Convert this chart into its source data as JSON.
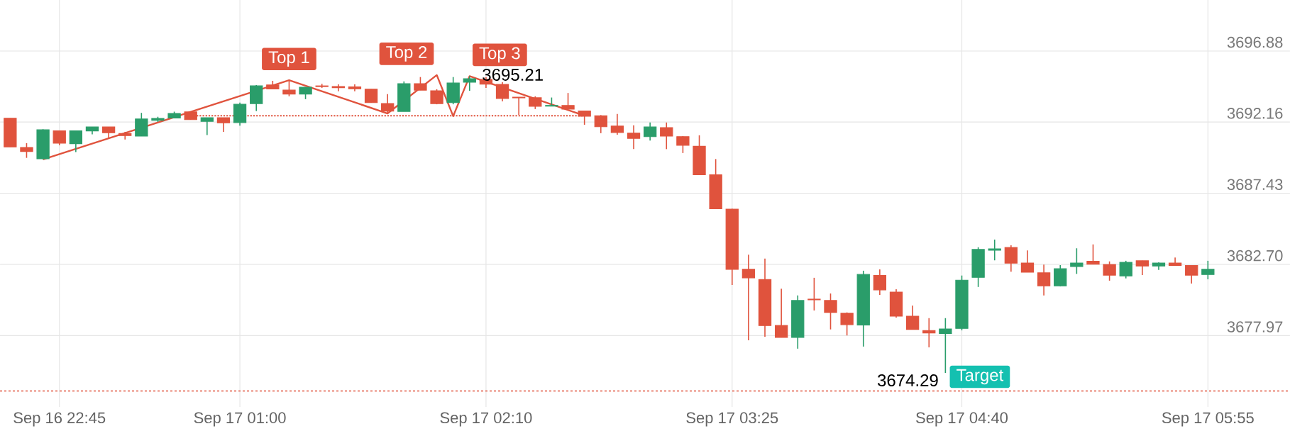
{
  "chart_data": {
    "type": "candlestick",
    "categories": [
      null,
      null,
      null,
      "Sep 16 22:45",
      null,
      null,
      null,
      null,
      null,
      null,
      null,
      null,
      null,
      null,
      "Sep 17 01:00",
      null,
      null,
      null,
      null,
      null,
      null,
      null,
      null,
      null,
      null,
      null,
      null,
      null,
      null,
      "Sep 17 02:10",
      null,
      null,
      null,
      null,
      null,
      null,
      null,
      null,
      null,
      null,
      null,
      null,
      null,
      null,
      "Sep 17 03:25",
      null,
      null,
      null,
      null,
      null,
      null,
      null,
      null,
      null,
      null,
      null,
      null,
      null,
      "Sep 17 04:40",
      null,
      null,
      null,
      null,
      null,
      null,
      null,
      null,
      null,
      null,
      null,
      null,
      null,
      null,
      "Sep 17 05:55"
    ],
    "ohlc": [
      [
        3692.41,
        3692.41,
        3690.51,
        3690.51
      ],
      [
        3690.47,
        3690.76,
        3689.78,
        3690.21
      ],
      [
        3689.72,
        3691.68,
        3689.68,
        3691.64
      ],
      [
        3691.57,
        3691.57,
        3690.62,
        3690.76
      ],
      [
        3690.72,
        3691.6,
        3690.17,
        3691.57
      ],
      [
        3691.57,
        3691.83,
        3691.34,
        3691.83
      ],
      [
        3691.83,
        3691.83,
        3691.13,
        3691.45
      ],
      [
        3691.4,
        3691.51,
        3691.0,
        3691.26
      ],
      [
        3691.23,
        3692.77,
        3691.23,
        3692.36
      ],
      [
        3692.28,
        3692.51,
        3692.17,
        3692.4
      ],
      [
        3692.43,
        3692.85,
        3692.43,
        3692.73
      ],
      [
        3692.83,
        3692.85,
        3692.32,
        3692.32
      ],
      [
        3692.21,
        3692.45,
        3691.3,
        3692.45
      ],
      [
        3692.45,
        3692.45,
        3691.51,
        3692.11
      ],
      [
        3692.13,
        3693.45,
        3691.92,
        3693.34
      ],
      [
        3693.39,
        3694.62,
        3692.89,
        3694.56
      ],
      [
        3694.62,
        3694.9,
        3694.36,
        3694.36
      ],
      [
        3694.28,
        3694.94,
        3693.87,
        3694.02
      ],
      [
        3694.02,
        3694.47,
        3693.68,
        3694.47
      ],
      [
        3694.56,
        3694.7,
        3694.43,
        3694.52
      ],
      [
        3694.52,
        3694.66,
        3694.2,
        3694.45
      ],
      [
        3694.49,
        3694.66,
        3694.2,
        3694.37
      ],
      [
        3694.34,
        3694.34,
        3693.45,
        3693.45
      ],
      [
        3693.39,
        3694.02,
        3692.73,
        3692.89
      ],
      [
        3692.87,
        3694.86,
        3692.87,
        3694.71
      ],
      [
        3694.71,
        3695.15,
        3694.28,
        3694.28
      ],
      [
        3694.24,
        3694.34,
        3693.34,
        3693.39
      ],
      [
        3693.45,
        3695.15,
        3693.34,
        3694.75
      ],
      [
        3694.81,
        3695.21,
        3694.24,
        3695.03
      ],
      [
        3694.99,
        3695.15,
        3694.43,
        3694.68
      ],
      [
        3694.66,
        3694.81,
        3693.53,
        3693.73
      ],
      [
        3693.81,
        3693.81,
        3692.64,
        3693.77
      ],
      [
        3693.77,
        3693.87,
        3693.02,
        3693.21
      ],
      [
        3693.22,
        3693.79,
        3693.22,
        3693.26
      ],
      [
        3693.26,
        3694.09,
        3693.02,
        3693.02
      ],
      [
        3692.89,
        3692.89,
        3691.98,
        3692.55
      ],
      [
        3692.58,
        3692.62,
        3691.42,
        3691.85
      ],
      [
        3691.89,
        3692.7,
        3691.32,
        3691.47
      ],
      [
        3691.42,
        3691.94,
        3690.36,
        3691.08
      ],
      [
        3691.19,
        3692.13,
        3690.93,
        3691.83
      ],
      [
        3691.79,
        3692.13,
        3690.36,
        3691.23
      ],
      [
        3691.19,
        3691.23,
        3690.1,
        3690.62
      ],
      [
        3690.55,
        3691.28,
        3688.66,
        3688.66
      ],
      [
        3688.65,
        3689.7,
        3686.4,
        3686.4
      ],
      [
        3686.37,
        3686.4,
        3681.33,
        3682.37
      ],
      [
        3682.37,
        3683.35,
        3677.66,
        3681.81
      ],
      [
        3681.69,
        3683.09,
        3677.89,
        3678.64
      ],
      [
        3678.64,
        3681.09,
        3677.85,
        3677.85
      ],
      [
        3677.85,
        3680.64,
        3677.1,
        3680.3
      ],
      [
        3680.39,
        3681.81,
        3679.64,
        3680.35
      ],
      [
        3680.3,
        3680.77,
        3678.38,
        3679.51
      ],
      [
        3679.45,
        3679.51,
        3677.98,
        3678.7
      ],
      [
        3678.68,
        3682.28,
        3677.24,
        3682.03
      ],
      [
        3681.96,
        3682.37,
        3680.67,
        3681.01
      ],
      [
        3680.86,
        3681.05,
        3679.17,
        3679.26
      ],
      [
        3679.26,
        3679.96,
        3678.38,
        3678.38
      ],
      [
        3678.3,
        3679.13,
        3677.19,
        3678.15
      ],
      [
        3678.11,
        3679.13,
        3675.49,
        3678.41
      ],
      [
        3678.45,
        3681.96,
        3678.32,
        3681.65
      ],
      [
        3681.84,
        3683.84,
        3681.2,
        3683.69
      ],
      [
        3683.65,
        3684.35,
        3682.97,
        3683.73
      ],
      [
        3683.82,
        3683.97,
        3682.22,
        3682.79
      ],
      [
        3682.79,
        3683.63,
        3682.18,
        3682.18
      ],
      [
        3682.14,
        3682.69,
        3680.64,
        3681.28
      ],
      [
        3681.28,
        3682.65,
        3681.24,
        3682.41
      ],
      [
        3682.56,
        3683.77,
        3682.07,
        3682.79
      ],
      [
        3682.9,
        3684.03,
        3682.71,
        3682.71
      ],
      [
        3682.69,
        3682.9,
        3681.62,
        3681.99
      ],
      [
        3681.94,
        3682.94,
        3681.77,
        3682.84
      ],
      [
        3682.94,
        3682.94,
        3681.99,
        3682.6
      ],
      [
        3682.6,
        3682.84,
        3682.33,
        3682.79
      ],
      [
        3682.79,
        3683.16,
        3682.63,
        3682.63
      ],
      [
        3682.62,
        3682.62,
        3681.43,
        3681.99
      ],
      [
        3682.03,
        3682.94,
        3681.71,
        3682.37
      ]
    ],
    "colors": [
      "#e0533d",
      "#e0533d",
      "#2a9d6a",
      "#e0533d",
      "#2a9d6a",
      "#2a9d6a",
      "#e0533d",
      "#e0533d",
      "#2a9d6a",
      "#2a9d6a",
      "#2a9d6a",
      "#e0533d",
      "#2a9d6a",
      "#e0533d",
      "#2a9d6a",
      "#2a9d6a",
      "#e0533d",
      "#e0533d",
      "#2a9d6a",
      "#e0533d",
      "#e0533d",
      "#e0533d",
      "#e0533d",
      "#e0533d",
      "#2a9d6a",
      "#e0533d",
      "#e0533d",
      "#2a9d6a",
      "#2a9d6a",
      "#e0533d",
      "#e0533d",
      "#e0533d",
      "#e0533d",
      "#2a9d6a",
      "#e0533d",
      "#e0533d",
      "#e0533d",
      "#e0533d",
      "#e0533d",
      "#2a9d6a",
      "#e0533d",
      "#e0533d",
      "#e0533d",
      "#e0533d",
      "#e0533d",
      "#e0533d",
      "#e0533d",
      "#e0533d",
      "#2a9d6a",
      "#e0533d",
      "#e0533d",
      "#e0533d",
      "#2a9d6a",
      "#e0533d",
      "#e0533d",
      "#e0533d",
      "#e0533d",
      "#2a9d6a",
      "#2a9d6a",
      "#2a9d6a",
      "#2a9d6a",
      "#e0533d",
      "#e0533d",
      "#e0533d",
      "#2a9d6a",
      "#2a9d6a",
      "#e0533d",
      "#e0533d",
      "#2a9d6a",
      "#e0533d",
      "#2a9d6a",
      "#e0533d",
      "#e0533d",
      "#2a9d6a"
    ],
    "series": [
      {
        "type": "line",
        "color": "#e0533d",
        "line_style": "solid",
        "values": [
          null,
          null,
          3689.68,
          null,
          null,
          null,
          null,
          null,
          null,
          null,
          null,
          null,
          null,
          null,
          null,
          null,
          null,
          3694.94,
          null,
          null,
          null,
          null,
          null,
          3692.73,
          null,
          null,
          3695.28,
          3692.55,
          3695.21,
          null,
          null,
          null,
          null,
          null,
          null,
          3692.58,
          null,
          null,
          null,
          null,
          null,
          null,
          null,
          null,
          null,
          null,
          null,
          null,
          null,
          null,
          null,
          null,
          null,
          null,
          null,
          null,
          null,
          null,
          null,
          null,
          null,
          null,
          null,
          null,
          null,
          null,
          null,
          null,
          null,
          null,
          null,
          null,
          null,
          null
        ]
      },
      {
        "type": "line",
        "color": "#e0533d",
        "line_style": "dotted",
        "values": [
          null,
          null,
          null,
          null,
          null,
          null,
          null,
          null,
          null,
          null,
          null,
          3692.58,
          null,
          null,
          null,
          null,
          null,
          null,
          null,
          null,
          null,
          null,
          null,
          null,
          null,
          null,
          null,
          null,
          null,
          null,
          null,
          null,
          null,
          null,
          null,
          3692.58,
          null,
          null,
          null,
          null,
          null,
          null,
          null,
          null,
          null,
          null,
          null,
          null,
          null,
          null,
          null,
          null,
          null,
          null,
          null,
          null,
          null,
          null,
          null,
          null,
          null,
          null,
          null,
          null,
          null,
          null,
          null,
          null,
          null,
          null,
          null,
          null,
          null,
          null
        ]
      }
    ],
    "ylim": [
      3673.23,
      3700.27
    ],
    "yticks": [
      3677.97,
      {
        "value": 3682.7,
        "label": "3682.70"
      },
      3687.43,
      3692.16,
      3696.88
    ],
    "grid": true,
    "ref_lines": [
      {
        "axis": "y",
        "value": 3674.29,
        "label": "3674.29",
        "color": "#e0533d",
        "line_style": "dashed"
      }
    ],
    "annotations": [
      "Top 1",
      "Top 2",
      "Top 3",
      "3695.21",
      "Target"
    ]
  }
}
